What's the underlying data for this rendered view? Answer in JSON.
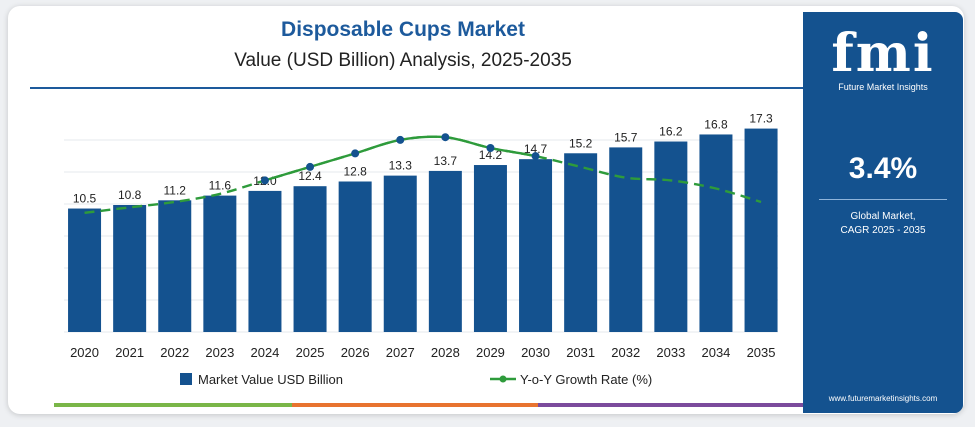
{
  "header": {
    "title": "Disposable Cups Market",
    "subtitle": "Value (USD Billion) Analysis, 2025-2035"
  },
  "colors": {
    "bar": "#14528f",
    "line": "#2e9b3b",
    "title": "#1d5a9c",
    "panel": "#14528f",
    "bottom_segments": [
      "#7ab648",
      "#e8732f",
      "#7b4b9c"
    ]
  },
  "chart_data": {
    "type": "bar",
    "categories": [
      "2020",
      "2021",
      "2022",
      "2023",
      "2024",
      "2025",
      "2026",
      "2027",
      "2028",
      "2029",
      "2030",
      "2031",
      "2032",
      "2033",
      "2034",
      "2035"
    ],
    "series": [
      {
        "name": "Market Value USD Billion",
        "type": "bar",
        "values": [
          10.5,
          10.8,
          11.2,
          11.6,
          12.0,
          12.4,
          12.8,
          13.3,
          13.7,
          14.2,
          14.7,
          15.2,
          15.7,
          16.2,
          16.8,
          17.3
        ],
        "labels": [
          "10.5",
          "10.8",
          "11.2",
          "11.6",
          "12.0",
          "12.4",
          "12.8",
          "13.3",
          "13.7",
          "14.2",
          "14.7",
          "15.2",
          "15.7",
          "16.2",
          "16.8",
          "17.3"
        ]
      },
      {
        "name": "Y-o-Y Growth Rate (%)",
        "type": "line",
        "values": [
          2.9,
          3.1,
          3.3,
          3.6,
          4.1,
          4.6,
          5.1,
          5.6,
          5.7,
          5.3,
          5.0,
          4.6,
          4.2,
          4.1,
          3.8,
          3.3
        ],
        "markers_at": [
          "2024",
          "2025",
          "2026",
          "2027",
          "2028",
          "2029",
          "2030"
        ]
      }
    ],
    "bar_axis_range": [
      0,
      18.2
    ],
    "line_axis_range": [
      1.3,
      6.3
    ],
    "grid": true,
    "legend_position": "bottom"
  },
  "legend": {
    "bar_label": "Market Value USD Billion",
    "line_label": "Y-o-Y Growth Rate (%)"
  },
  "panel": {
    "logo_text": "fmi",
    "logo_subtitle": "Future Market Insights",
    "cagr_value": "3.4%",
    "cagr_label_line1": "Global Market,",
    "cagr_label_line2": "CAGR 2025 - 2035",
    "website": "www.futuremarketinsights.com"
  }
}
